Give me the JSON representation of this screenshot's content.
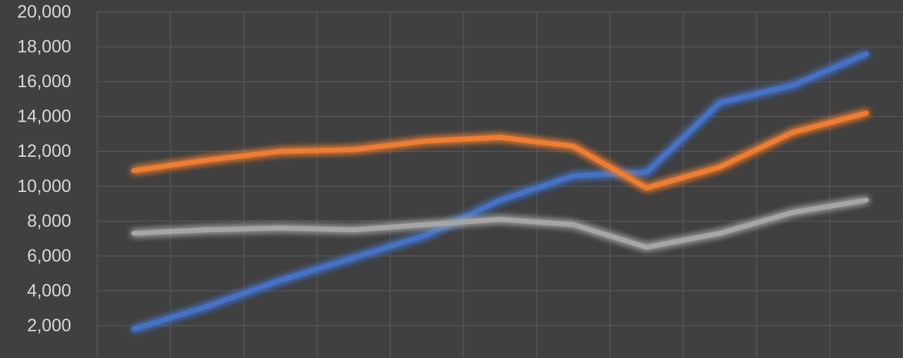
{
  "chart_data": {
    "type": "line",
    "title": "",
    "xlabel": "",
    "ylabel": "",
    "ylim": [
      2000,
      20000
    ],
    "yticks": [
      2000,
      4000,
      6000,
      8000,
      10000,
      12000,
      14000,
      16000,
      18000,
      20000
    ],
    "ytick_labels": [
      "2,000",
      "4,000",
      "6,000",
      "8,000",
      "10,000",
      "12,000",
      "14,000",
      "16,000",
      "18,000",
      "20,000"
    ],
    "x": [
      1,
      2,
      3,
      4,
      5,
      6,
      7,
      8,
      9,
      10,
      11
    ],
    "grid": true,
    "legend": "none",
    "series": [
      {
        "color": "#4472c4",
        "values": [
          1800,
          3100,
          4600,
          5900,
          7200,
          9200,
          10600,
          10800,
          14800,
          15800,
          17600
        ]
      },
      {
        "color": "#ed7d31",
        "values": [
          10900,
          11500,
          12000,
          12100,
          12600,
          12800,
          12300,
          9900,
          11100,
          13100,
          14200
        ]
      },
      {
        "color": "#a5a5a5",
        "values": [
          7300,
          7500,
          7600,
          7500,
          7800,
          8100,
          7800,
          6500,
          7300,
          8500,
          9200
        ]
      }
    ]
  }
}
